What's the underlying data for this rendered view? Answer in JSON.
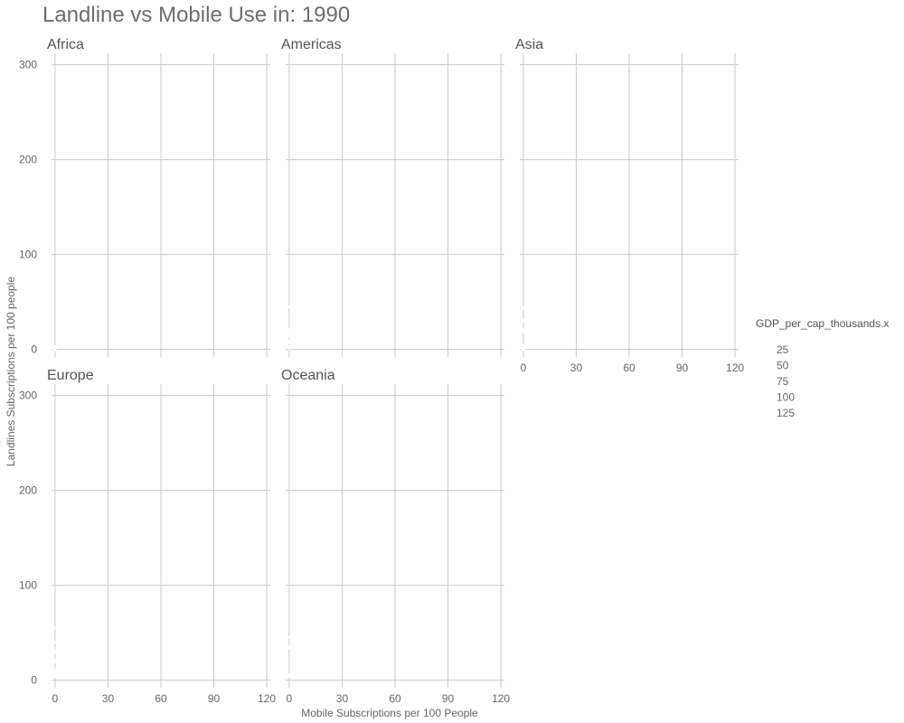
{
  "chart_data": {
    "type": "scatter",
    "title": "Landline vs Mobile Use in: 1990",
    "xlabel": "Mobile Subscriptions per 100 People",
    "ylabel": "Landlines Subscriptions per 100 people",
    "xlim": [
      -2,
      122
    ],
    "ylim": [
      -8,
      312
    ],
    "x_ticks": [
      0,
      30,
      60,
      90,
      120
    ],
    "y_ticks": [
      0,
      100,
      200,
      300
    ],
    "grid": true,
    "legend": {
      "title": "GDP_per_cap_thousands.x",
      "placement": "right",
      "entries": [
        25,
        50,
        75,
        100,
        125
      ]
    },
    "panels": [
      {
        "name": "Africa",
        "points": [
          {
            "x": 0,
            "y": 0.5
          },
          {
            "x": 0,
            "y": 1
          },
          {
            "x": 0,
            "y": 1.5
          },
          {
            "x": 0,
            "y": 2
          }
        ]
      },
      {
        "name": "Americas",
        "points": [
          {
            "x": 0,
            "y": 2
          },
          {
            "x": 0,
            "y": 8
          },
          {
            "x": 0,
            "y": 15
          },
          {
            "x": 0,
            "y": 20
          },
          {
            "x": 1,
            "y": 45
          }
        ]
      },
      {
        "name": "Asia",
        "points": [
          {
            "x": 0,
            "y": 1
          },
          {
            "x": 0,
            "y": 3
          },
          {
            "x": 0,
            "y": 20
          },
          {
            "x": 0,
            "y": 30
          },
          {
            "x": 1,
            "y": 44
          }
        ]
      },
      {
        "name": "Europe",
        "points": [
          {
            "x": 0,
            "y": 5
          },
          {
            "x": 0,
            "y": 10
          },
          {
            "x": 0,
            "y": 20
          },
          {
            "x": 0,
            "y": 30
          },
          {
            "x": 1,
            "y": 40
          },
          {
            "x": 1,
            "y": 55
          }
        ]
      },
      {
        "name": "Oceania",
        "points": [
          {
            "x": 0,
            "y": 5
          },
          {
            "x": 0,
            "y": 35
          },
          {
            "x": 1,
            "y": 45
          }
        ]
      }
    ]
  }
}
